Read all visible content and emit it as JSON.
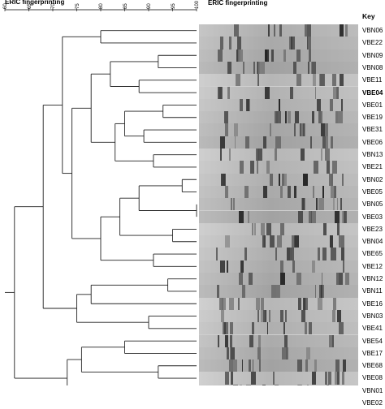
{
  "figure": {
    "scale_title": "ERIC fingerprinting",
    "gel_title": "ERIC fingerprinting",
    "key_header": "Key",
    "scale_ticks": [
      "60",
      "65",
      "70",
      "75",
      "80",
      "85",
      "90",
      "95",
      "100"
    ]
  },
  "samples": [
    {
      "label": "VBN06",
      "bold": false
    },
    {
      "label": "VBE22",
      "bold": false
    },
    {
      "label": "VBN09",
      "bold": false
    },
    {
      "label": "VBN08",
      "bold": false
    },
    {
      "label": "VBE11",
      "bold": false
    },
    {
      "label": "VBE04",
      "bold": true
    },
    {
      "label": "VBE01",
      "bold": false
    },
    {
      "label": "VBE19",
      "bold": false
    },
    {
      "label": "VBE31",
      "bold": false
    },
    {
      "label": "VBE06",
      "bold": false
    },
    {
      "label": "VBN13",
      "bold": false
    },
    {
      "label": "VBE21",
      "bold": false
    },
    {
      "label": "VBN02",
      "bold": false
    },
    {
      "label": "VBE05",
      "bold": false
    },
    {
      "label": "VBN05",
      "bold": false
    },
    {
      "label": "VBE03",
      "bold": false
    },
    {
      "label": "VBE23",
      "bold": false
    },
    {
      "label": "VBN04",
      "bold": false
    },
    {
      "label": "VBE65",
      "bold": false
    },
    {
      "label": "VBE12",
      "bold": false
    },
    {
      "label": "VBN12",
      "bold": false
    },
    {
      "label": "VBN11",
      "bold": false
    },
    {
      "label": "VBE16",
      "bold": false
    },
    {
      "label": "VBN03",
      "bold": false
    },
    {
      "label": "VBE41",
      "bold": false
    },
    {
      "label": "VBE54",
      "bold": false
    },
    {
      "label": "VBE17",
      "bold": false
    },
    {
      "label": "VBE68",
      "bold": false
    },
    {
      "label": "VBE08",
      "bold": false
    },
    {
      "label": "VBN01",
      "bold": false
    },
    {
      "label": "VBE02",
      "bold": false
    }
  ],
  "dendrogram": {
    "leaves_order": [
      "VBN06",
      "VBE22",
      "VBN09",
      "VBN08",
      "VBE11",
      "VBE04",
      "VBE01",
      "VBE19",
      "VBE31",
      "VBE06",
      "VBN13",
      "VBE21",
      "VBN02",
      "VBE05",
      "VBN05",
      "VBE03",
      "VBE23",
      "VBN04",
      "VBE65",
      "VBE12",
      "VBN12",
      "VBN11",
      "VBE16",
      "VBN03",
      "VBE41",
      "VBE54",
      "VBE17",
      "VBE68",
      "VBE08",
      "VBN01",
      "VBE02"
    ],
    "merges": [
      {
        "a": 0,
        "b": 1,
        "similarity": 80
      },
      {
        "a": 2,
        "b": 3,
        "similarity": 92
      },
      {
        "a": 4,
        "b": 5,
        "similarity": 88
      },
      {
        "a": 6,
        "b": 7,
        "similarity": 93
      },
      {
        "a": 8,
        "b": 9,
        "similarity": 89
      },
      {
        "a": 10,
        "b": 11,
        "similarity": 91
      },
      {
        "a": 12,
        "b": 13,
        "similarity": 97
      },
      {
        "a": 14,
        "b": 15,
        "similarity": 100
      },
      {
        "a": 16,
        "b": 17,
        "similarity": 95
      },
      {
        "a": 18,
        "b": 19,
        "similarity": 91
      },
      {
        "a": 20,
        "b": 21,
        "similarity": 94
      },
      {
        "a": 23,
        "b": 24,
        "similarity": 90
      },
      {
        "a": 25,
        "b": 26,
        "similarity": 85
      },
      {
        "a": 27,
        "b": 28,
        "similarity": 92
      },
      {
        "a": 29,
        "b": 30,
        "similarity": 88
      }
    ]
  }
}
